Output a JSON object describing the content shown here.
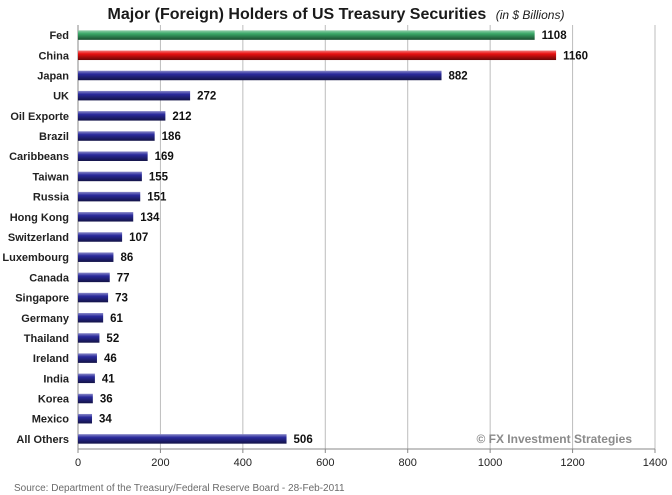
{
  "chart_data": {
    "type": "bar",
    "orientation": "horizontal",
    "title": "Major (Foreign) Holders of US Treasury Securities",
    "subtitle": "(in $ Billions)",
    "categories": [
      "Fed",
      "China",
      "Japan",
      "UK",
      "Oil Exporte",
      "Brazil",
      "Caribbeans",
      "Taiwan",
      "Russia",
      "Hong Kong",
      "Switzerland",
      "Luxembourg",
      "Canada",
      "Singapore",
      "Germany",
      "Thailand",
      "Ireland",
      "India",
      "Korea",
      "Mexico",
      "All Others"
    ],
    "values": [
      1108,
      1160,
      882,
      272,
      212,
      186,
      169,
      155,
      151,
      134,
      107,
      86,
      77,
      73,
      61,
      52,
      46,
      41,
      36,
      34,
      506
    ],
    "value_labels": [
      "1108",
      "1160",
      "882",
      "272",
      "212",
      "186",
      "169",
      "155",
      "151",
      "134",
      "107",
      "86",
      "77",
      "73",
      "61",
      "52",
      "46",
      "41",
      "36",
      "34",
      "506"
    ],
    "bar_colors": [
      "#3aa868",
      "#e81010",
      "#2a2a9c",
      "#2a2a9c",
      "#2a2a9c",
      "#2a2a9c",
      "#2a2a9c",
      "#2a2a9c",
      "#2a2a9c",
      "#2a2a9c",
      "#2a2a9c",
      "#2a2a9c",
      "#2a2a9c",
      "#2a2a9c",
      "#2a2a9c",
      "#2a2a9c",
      "#2a2a9c",
      "#2a2a9c",
      "#2a2a9c",
      "#2a2a9c",
      "#2a2a9c"
    ],
    "xlim": [
      0,
      1400
    ],
    "xticks": [
      0,
      200,
      400,
      600,
      800,
      1000,
      1200,
      1400
    ],
    "xtick_labels": [
      "0",
      "200",
      "400",
      "600",
      "800",
      "1000",
      "1200",
      "1400"
    ],
    "xlabel": "",
    "ylabel": "",
    "grid": "vertical",
    "legend": "none",
    "watermark": "© FX Investment Strategies",
    "source": "Source: Department of the Treasury/Federal Reserve Board - 28-Feb-2011"
  }
}
